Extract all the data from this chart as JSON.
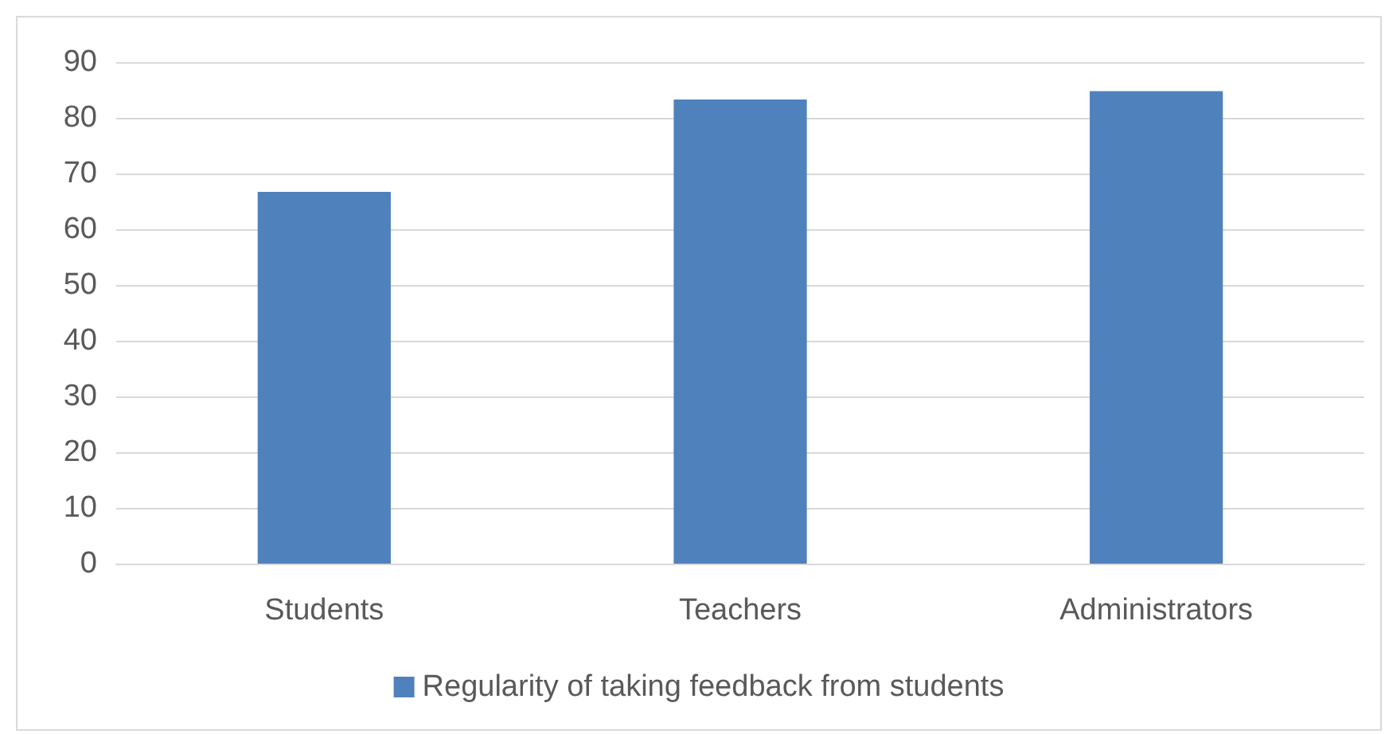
{
  "chart_data": {
    "type": "bar",
    "categories": [
      "Students",
      "Teachers",
      "Administrators"
    ],
    "series": [
      {
        "name": "Regularity of taking feedback from students",
        "color": "#4f81bd",
        "values": [
          66.7,
          83.3,
          84.8
        ]
      }
    ],
    "ylim": [
      0,
      90
    ],
    "yticks": [
      0,
      10,
      20,
      30,
      40,
      50,
      60,
      70,
      80,
      90
    ],
    "grid": "y",
    "legend": "bottom"
  }
}
